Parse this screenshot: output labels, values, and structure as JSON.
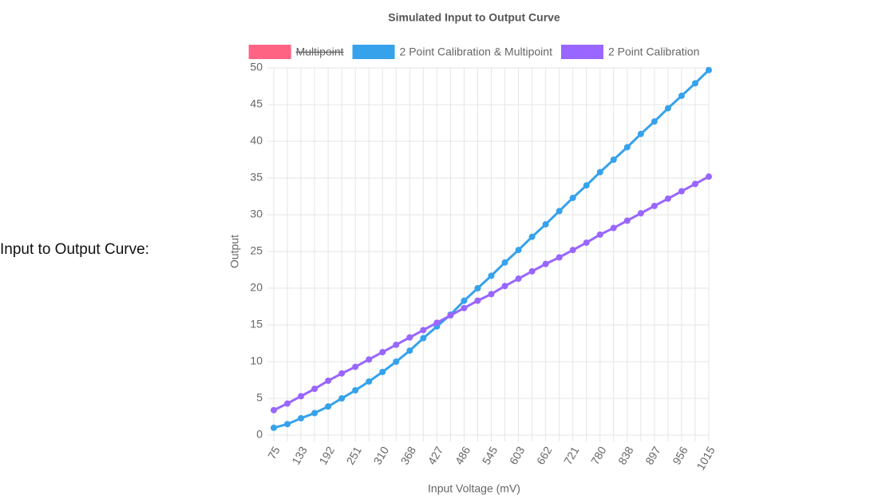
{
  "label": "Input to Output Curve:",
  "chart_data": {
    "type": "line",
    "title": "Simulated Input to Output Curve",
    "x_label": "Input Voltage (mV)",
    "y_label": "Output",
    "categories": [
      75,
      null,
      133,
      null,
      192,
      null,
      251,
      null,
      310,
      null,
      368,
      null,
      427,
      null,
      486,
      null,
      545,
      null,
      603,
      null,
      662,
      null,
      721,
      null,
      780,
      null,
      838,
      null,
      897,
      null,
      956,
      null,
      1015
    ],
    "series": [
      {
        "name": "Multipoint",
        "color": "#ff6384",
        "hidden": true,
        "values": [
          null,
          null,
          null,
          null,
          null,
          null,
          null,
          null,
          null,
          null,
          null,
          null,
          null,
          null,
          null,
          null,
          null,
          null,
          null,
          null,
          null,
          null,
          null,
          null,
          null,
          null,
          null,
          null,
          null,
          null,
          null,
          null,
          null
        ]
      },
      {
        "name": "2 Point Calibration & Multipoint",
        "color": "#36a2eb",
        "values": [
          1.0,
          1.5,
          2.3,
          3.0,
          3.9,
          5.0,
          6.1,
          7.3,
          8.6,
          10.0,
          11.5,
          13.2,
          14.8,
          16.4,
          18.3,
          20.0,
          21.7,
          23.5,
          25.2,
          27.0,
          28.7,
          30.5,
          32.3,
          34.0,
          35.8,
          37.5,
          39.2,
          41.0,
          42.7,
          44.5,
          46.2,
          47.9,
          49.7
        ]
      },
      {
        "name": "2 Point Calibration",
        "color": "#9966ff",
        "values": [
          3.4,
          4.3,
          5.3,
          6.3,
          7.4,
          8.4,
          9.3,
          10.3,
          11.3,
          12.3,
          13.3,
          14.3,
          15.3,
          16.3,
          17.3,
          18.3,
          19.2,
          20.3,
          21.3,
          22.3,
          23.3,
          24.2,
          25.2,
          26.2,
          27.3,
          28.2,
          29.2,
          30.2,
          31.2,
          32.2,
          33.2,
          34.2,
          35.2
        ]
      }
    ],
    "ylim": [
      0,
      50
    ],
    "yticks": [
      0,
      5,
      10,
      15,
      20,
      25,
      30,
      35,
      40,
      45,
      50
    ],
    "grid": true,
    "legend": "top"
  }
}
